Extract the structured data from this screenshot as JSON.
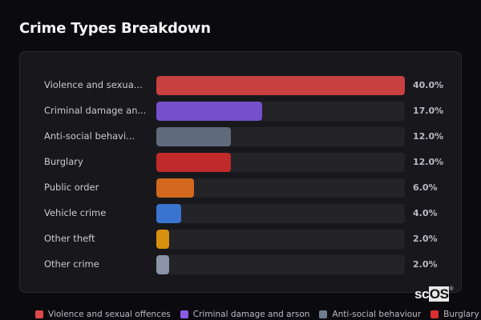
{
  "header": {
    "title": "Crime Types Breakdown"
  },
  "chart_data": {
    "type": "bar",
    "orientation": "horizontal",
    "title": "Crime Types Breakdown",
    "categories": [
      "Violence and sexual offences",
      "Criminal damage and arson",
      "Anti-social behaviour",
      "Burglary",
      "Public order",
      "Vehicle crime",
      "Other theft",
      "Other crime"
    ],
    "display_labels": [
      "Violence and sexua...",
      "Criminal damage an...",
      "Anti-social behavi...",
      "Burglary",
      "Public order",
      "Vehicle crime",
      "Other theft",
      "Other crime"
    ],
    "values": [
      40.0,
      17.0,
      12.0,
      12.0,
      6.0,
      4.0,
      2.0,
      2.0
    ],
    "value_labels": [
      "40.0%",
      "17.0%",
      "12.0%",
      "12.0%",
      "6.0%",
      "4.0%",
      "2.0%",
      "2.0%"
    ],
    "colors": [
      "#c94040",
      "#7650cc",
      "#5f6b7a",
      "#c02a2a",
      "#d2691e",
      "#3a74d0",
      "#d8900f",
      "#8a94a6"
    ],
    "xlim": [
      0,
      40
    ],
    "unit": "%",
    "grid": false,
    "legend_position": "bottom",
    "legend": [
      {
        "label": "Violence and sexual offences",
        "color": "#e04848"
      },
      {
        "label": "Criminal damage and arson",
        "color": "#8a5ce6"
      },
      {
        "label": "Anti-social behaviour",
        "color": "#6e7c92"
      },
      {
        "label": "Burglary",
        "color": "#dc2f2f"
      }
    ]
  },
  "watermark": {
    "text_a": "sc",
    "text_b": "OS",
    "mark": "®"
  }
}
